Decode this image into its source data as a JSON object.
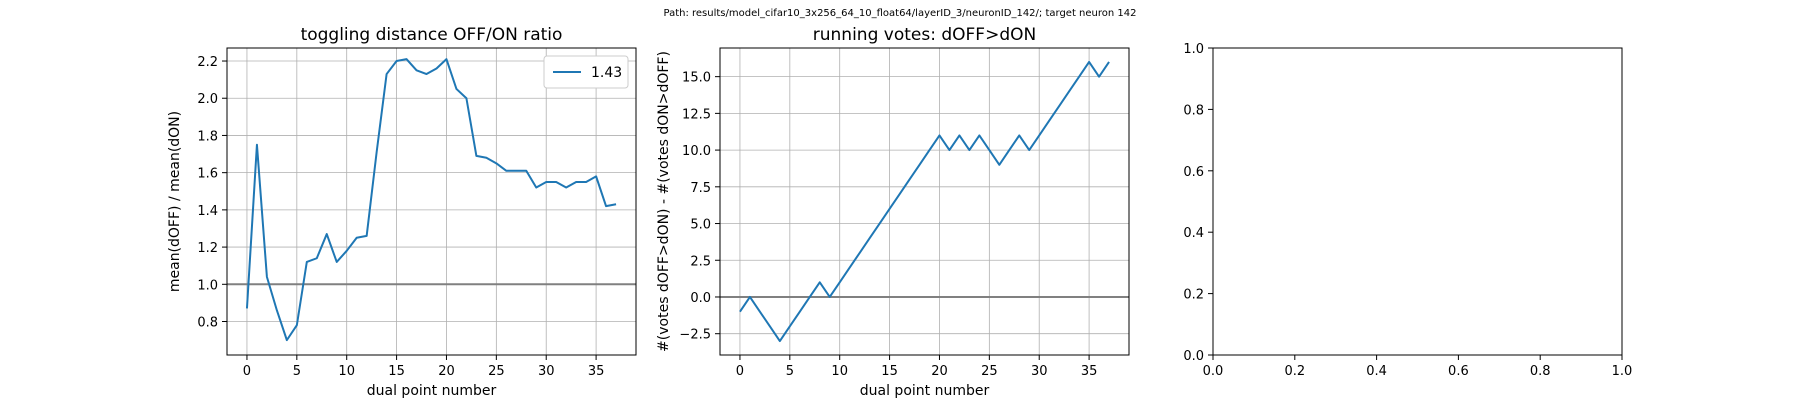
{
  "suptitle": "Path: results/model_cifar10_3x256_64_10_float64/layerID_3/neuronID_142/; target neuron 142",
  "colors": {
    "series": "#1f77b4",
    "refline": "#808080",
    "grid": "#b0b0b0"
  },
  "chart_data": [
    {
      "type": "line",
      "title": "toggling distance OFF/ON ratio",
      "xlabel": "dual point number",
      "ylabel": "mean(dOFF) / mean(dON)",
      "xlim": [
        -2,
        39
      ],
      "ylim": [
        0.62,
        2.27
      ],
      "xticks": [
        0,
        5,
        10,
        15,
        20,
        25,
        30,
        35
      ],
      "xtick_labels": [
        "0",
        "5",
        "10",
        "15",
        "20",
        "25",
        "30",
        "35"
      ],
      "yticks": [
        0.8,
        1.0,
        1.2,
        1.4,
        1.6,
        1.8,
        2.0,
        2.2
      ],
      "ytick_labels": [
        "0.8",
        "1.0",
        "1.2",
        "1.4",
        "1.6",
        "1.8",
        "2.0",
        "2.2"
      ],
      "grid": true,
      "hline": 1.0,
      "legend_position": "upper right",
      "series": [
        {
          "name": "1.43",
          "x": [
            0,
            1,
            2,
            3,
            4,
            5,
            6,
            7,
            8,
            9,
            10,
            11,
            12,
            13,
            14,
            15,
            16,
            17,
            18,
            19,
            20,
            21,
            22,
            23,
            24,
            25,
            26,
            27,
            28,
            29,
            30,
            31,
            32,
            33,
            34,
            35,
            36,
            37
          ],
          "y": [
            0.87,
            1.75,
            1.04,
            0.86,
            0.7,
            0.78,
            1.12,
            1.14,
            1.27,
            1.12,
            1.18,
            1.25,
            1.26,
            1.71,
            2.13,
            2.2,
            2.21,
            2.15,
            2.13,
            2.16,
            2.21,
            2.05,
            2.0,
            1.69,
            1.68,
            1.65,
            1.61,
            1.61,
            1.61,
            1.52,
            1.55,
            1.55,
            1.52,
            1.55,
            1.55,
            1.58,
            1.42,
            1.43
          ]
        }
      ]
    },
    {
      "type": "line",
      "title": "running votes: dOFF>dON",
      "xlabel": "dual point number",
      "ylabel": "#(votes dOFF>dON) - #(votes dON>dOFF)",
      "xlim": [
        -2,
        39
      ],
      "ylim": [
        -3.95,
        16.95
      ],
      "xticks": [
        0,
        5,
        10,
        15,
        20,
        25,
        30,
        35
      ],
      "xtick_labels": [
        "0",
        "5",
        "10",
        "15",
        "20",
        "25",
        "30",
        "35"
      ],
      "yticks": [
        -2.5,
        0.0,
        2.5,
        5.0,
        7.5,
        10.0,
        12.5,
        15.0
      ],
      "ytick_labels": [
        "−2.5",
        "0.0",
        "2.5",
        "5.0",
        "7.5",
        "10.0",
        "12.5",
        "15.0"
      ],
      "grid": true,
      "hline": 0.0,
      "series": [
        {
          "x": [
            0,
            1,
            2,
            3,
            4,
            5,
            6,
            7,
            8,
            9,
            10,
            11,
            12,
            13,
            14,
            15,
            16,
            17,
            18,
            19,
            20,
            21,
            22,
            23,
            24,
            25,
            26,
            27,
            28,
            29,
            30,
            31,
            32,
            33,
            34,
            35,
            36,
            37
          ],
          "y": [
            -1,
            0,
            -1,
            -2,
            -3,
            -2,
            -1,
            0,
            1,
            0,
            1,
            2,
            3,
            4,
            5,
            6,
            7,
            8,
            9,
            10,
            11,
            10,
            11,
            10,
            11,
            10,
            9,
            10,
            11,
            10,
            11,
            12,
            13,
            14,
            15,
            16,
            15,
            16
          ]
        }
      ]
    },
    {
      "type": "line",
      "title": "",
      "xlabel": "",
      "ylabel": "",
      "xlim": [
        0,
        1
      ],
      "ylim": [
        0,
        1
      ],
      "xticks": [
        0,
        0.2,
        0.4,
        0.6,
        0.8,
        1.0
      ],
      "xtick_labels": [
        "0.0",
        "0.2",
        "0.4",
        "0.6",
        "0.8",
        "1.0"
      ],
      "yticks": [
        0,
        0.2,
        0.4,
        0.6,
        0.8,
        1.0
      ],
      "ytick_labels": [
        "0.0",
        "0.2",
        "0.4",
        "0.6",
        "0.8",
        "1.0"
      ],
      "grid": false,
      "series": []
    }
  ]
}
